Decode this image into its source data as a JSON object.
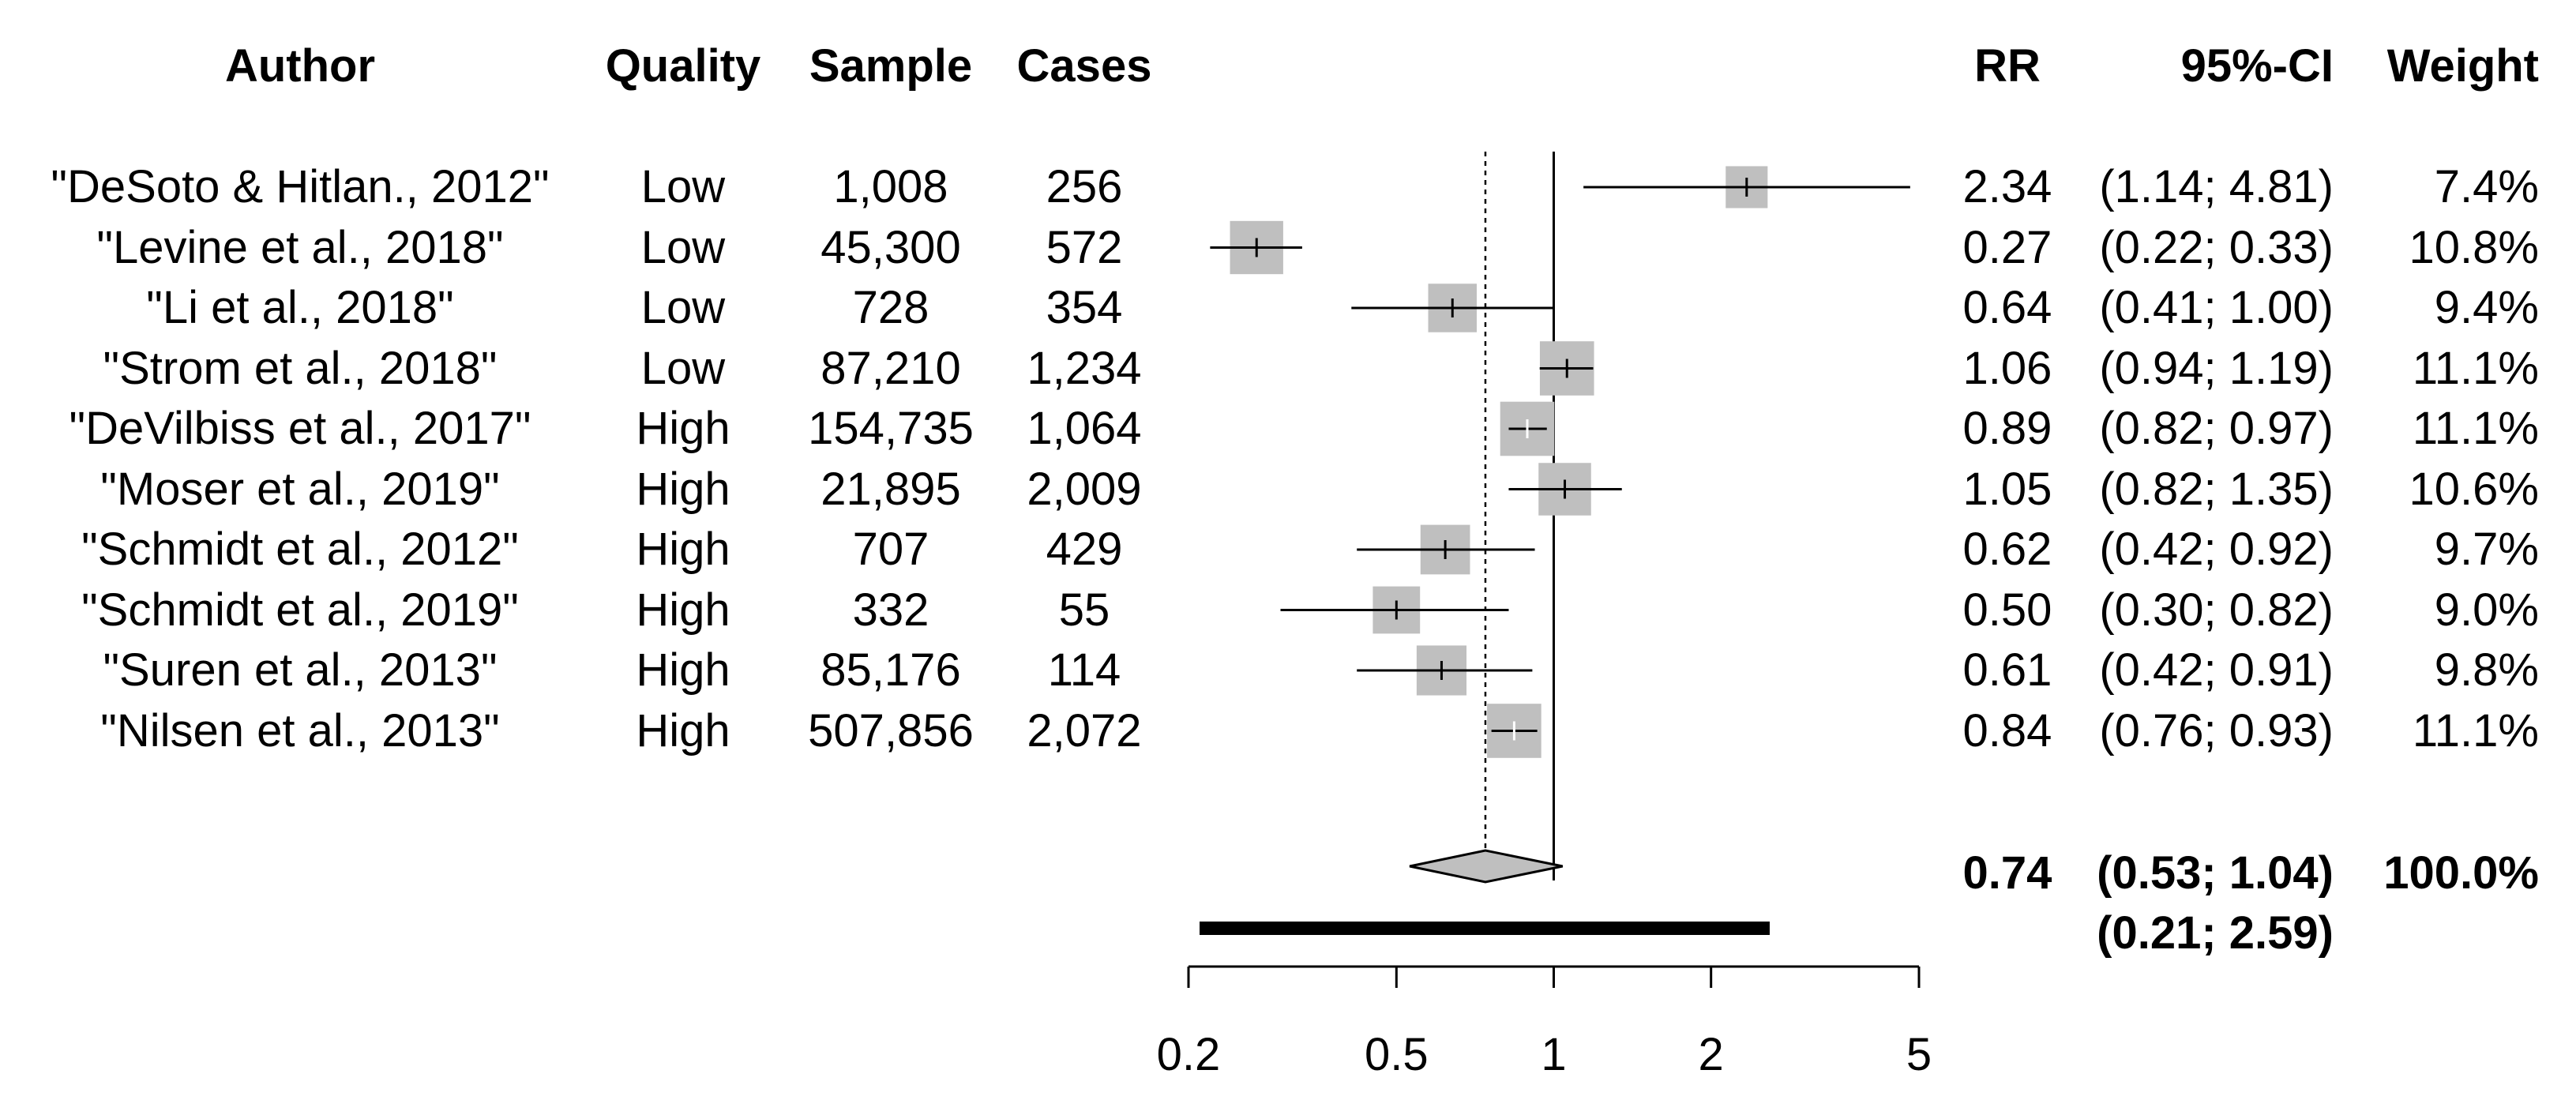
{
  "chart_data": {
    "type": "forest",
    "headers": {
      "author": "Author",
      "quality": "Quality",
      "sample": "Sample",
      "cases": "Cases",
      "rr": "RR",
      "ci": "95%-CI",
      "weight": "Weight"
    },
    "studies": [
      {
        "author": "\"DeSoto & Hitlan., 2012\"",
        "quality": "Low",
        "sample": "1,008",
        "cases": "256",
        "rr": 2.34,
        "lower": 1.14,
        "upper": 4.81,
        "rr_text": "2.34",
        "ci_text": "(1.14; 4.81)",
        "weight_text": "7.4%",
        "weight": 7.4,
        "box_color": "#bfbfbf",
        "tick_color": "#000000"
      },
      {
        "author": "\"Levine et al., 2018\"",
        "quality": "Low",
        "sample": "45,300",
        "cases": "572",
        "rr": 0.27,
        "lower": 0.22,
        "upper": 0.33,
        "rr_text": "0.27",
        "ci_text": "(0.22; 0.33)",
        "weight_text": "10.8%",
        "weight": 10.8,
        "box_color": "#bfbfbf",
        "tick_color": "#000000"
      },
      {
        "author": "\"Li et al., 2018\"",
        "quality": "Low",
        "sample": "728",
        "cases": "354",
        "rr": 0.64,
        "lower": 0.41,
        "upper": 1.0,
        "rr_text": "0.64",
        "ci_text": "(0.41; 1.00)",
        "weight_text": "9.4%",
        "weight": 9.4,
        "box_color": "#bfbfbf",
        "tick_color": "#000000"
      },
      {
        "author": "\"Strom et al., 2018\"",
        "quality": "Low",
        "sample": "87,210",
        "cases": "1,234",
        "rr": 1.06,
        "lower": 0.94,
        "upper": 1.19,
        "rr_text": "1.06",
        "ci_text": "(0.94; 1.19)",
        "weight_text": "11.1%",
        "weight": 11.1,
        "box_color": "#bfbfbf",
        "tick_color": "#000000"
      },
      {
        "author": "\"DeVilbiss et al., 2017\"",
        "quality": "High",
        "sample": "154,735",
        "cases": "1,064",
        "rr": 0.89,
        "lower": 0.82,
        "upper": 0.97,
        "rr_text": "0.89",
        "ci_text": "(0.82; 0.97)",
        "weight_text": "11.1%",
        "weight": 11.1,
        "box_color": "#bfbfbf",
        "tick_color": "#ffffff"
      },
      {
        "author": "\"Moser et al., 2019\"",
        "quality": "High",
        "sample": "21,895",
        "cases": "2,009",
        "rr": 1.05,
        "lower": 0.82,
        "upper": 1.35,
        "rr_text": "1.05",
        "ci_text": "(0.82; 1.35)",
        "weight_text": "10.6%",
        "weight": 10.6,
        "box_color": "#bfbfbf",
        "tick_color": "#000000"
      },
      {
        "author": "\"Schmidt et al., 2012\"",
        "quality": "High",
        "sample": "707",
        "cases": "429",
        "rr": 0.62,
        "lower": 0.42,
        "upper": 0.92,
        "rr_text": "0.62",
        "ci_text": "(0.42; 0.92)",
        "weight_text": "9.7%",
        "weight": 9.7,
        "box_color": "#bfbfbf",
        "tick_color": "#000000"
      },
      {
        "author": "\"Schmidt et al., 2019\"",
        "quality": "High",
        "sample": "332",
        "cases": "55",
        "rr": 0.5,
        "lower": 0.3,
        "upper": 0.82,
        "rr_text": "0.50",
        "ci_text": "(0.30; 0.82)",
        "weight_text": "9.0%",
        "weight": 9.0,
        "box_color": "#bfbfbf",
        "tick_color": "#000000"
      },
      {
        "author": "\"Suren et al., 2013\"",
        "quality": "High",
        "sample": "85,176",
        "cases": "114",
        "rr": 0.61,
        "lower": 0.42,
        "upper": 0.91,
        "rr_text": "0.61",
        "ci_text": "(0.42; 0.91)",
        "weight_text": "9.8%",
        "weight": 9.8,
        "box_color": "#bfbfbf",
        "tick_color": "#000000"
      },
      {
        "author": "\"Nilsen et al., 2013\"",
        "quality": "High",
        "sample": "507,856",
        "cases": "2,072",
        "rr": 0.84,
        "lower": 0.76,
        "upper": 0.93,
        "rr_text": "0.84",
        "ci_text": "(0.76; 0.93)",
        "weight_text": "11.1%",
        "weight": 11.1,
        "box_color": "#bfbfbf",
        "tick_color": "#ffffff"
      }
    ],
    "pooled": {
      "rr": 0.74,
      "lower": 0.53,
      "upper": 1.04,
      "rr_text": "0.74",
      "ci_text": "(0.53; 1.04)",
      "weight_text": "100.0%",
      "diamond_color": "#bfbfbf"
    },
    "prediction_interval": {
      "lower": 0.21,
      "upper": 2.59,
      "ci_text": "(0.21; 2.59)"
    },
    "reference_line": 1,
    "pooled_reference_line": 0.74,
    "xscale": "log",
    "xlim": [
      0.2,
      5
    ],
    "x_ticks": [
      0.2,
      0.5,
      1,
      2,
      5
    ],
    "x_tick_labels": [
      "0.2",
      "0.5",
      "1",
      "2",
      "5"
    ],
    "line_color": "#000000"
  }
}
